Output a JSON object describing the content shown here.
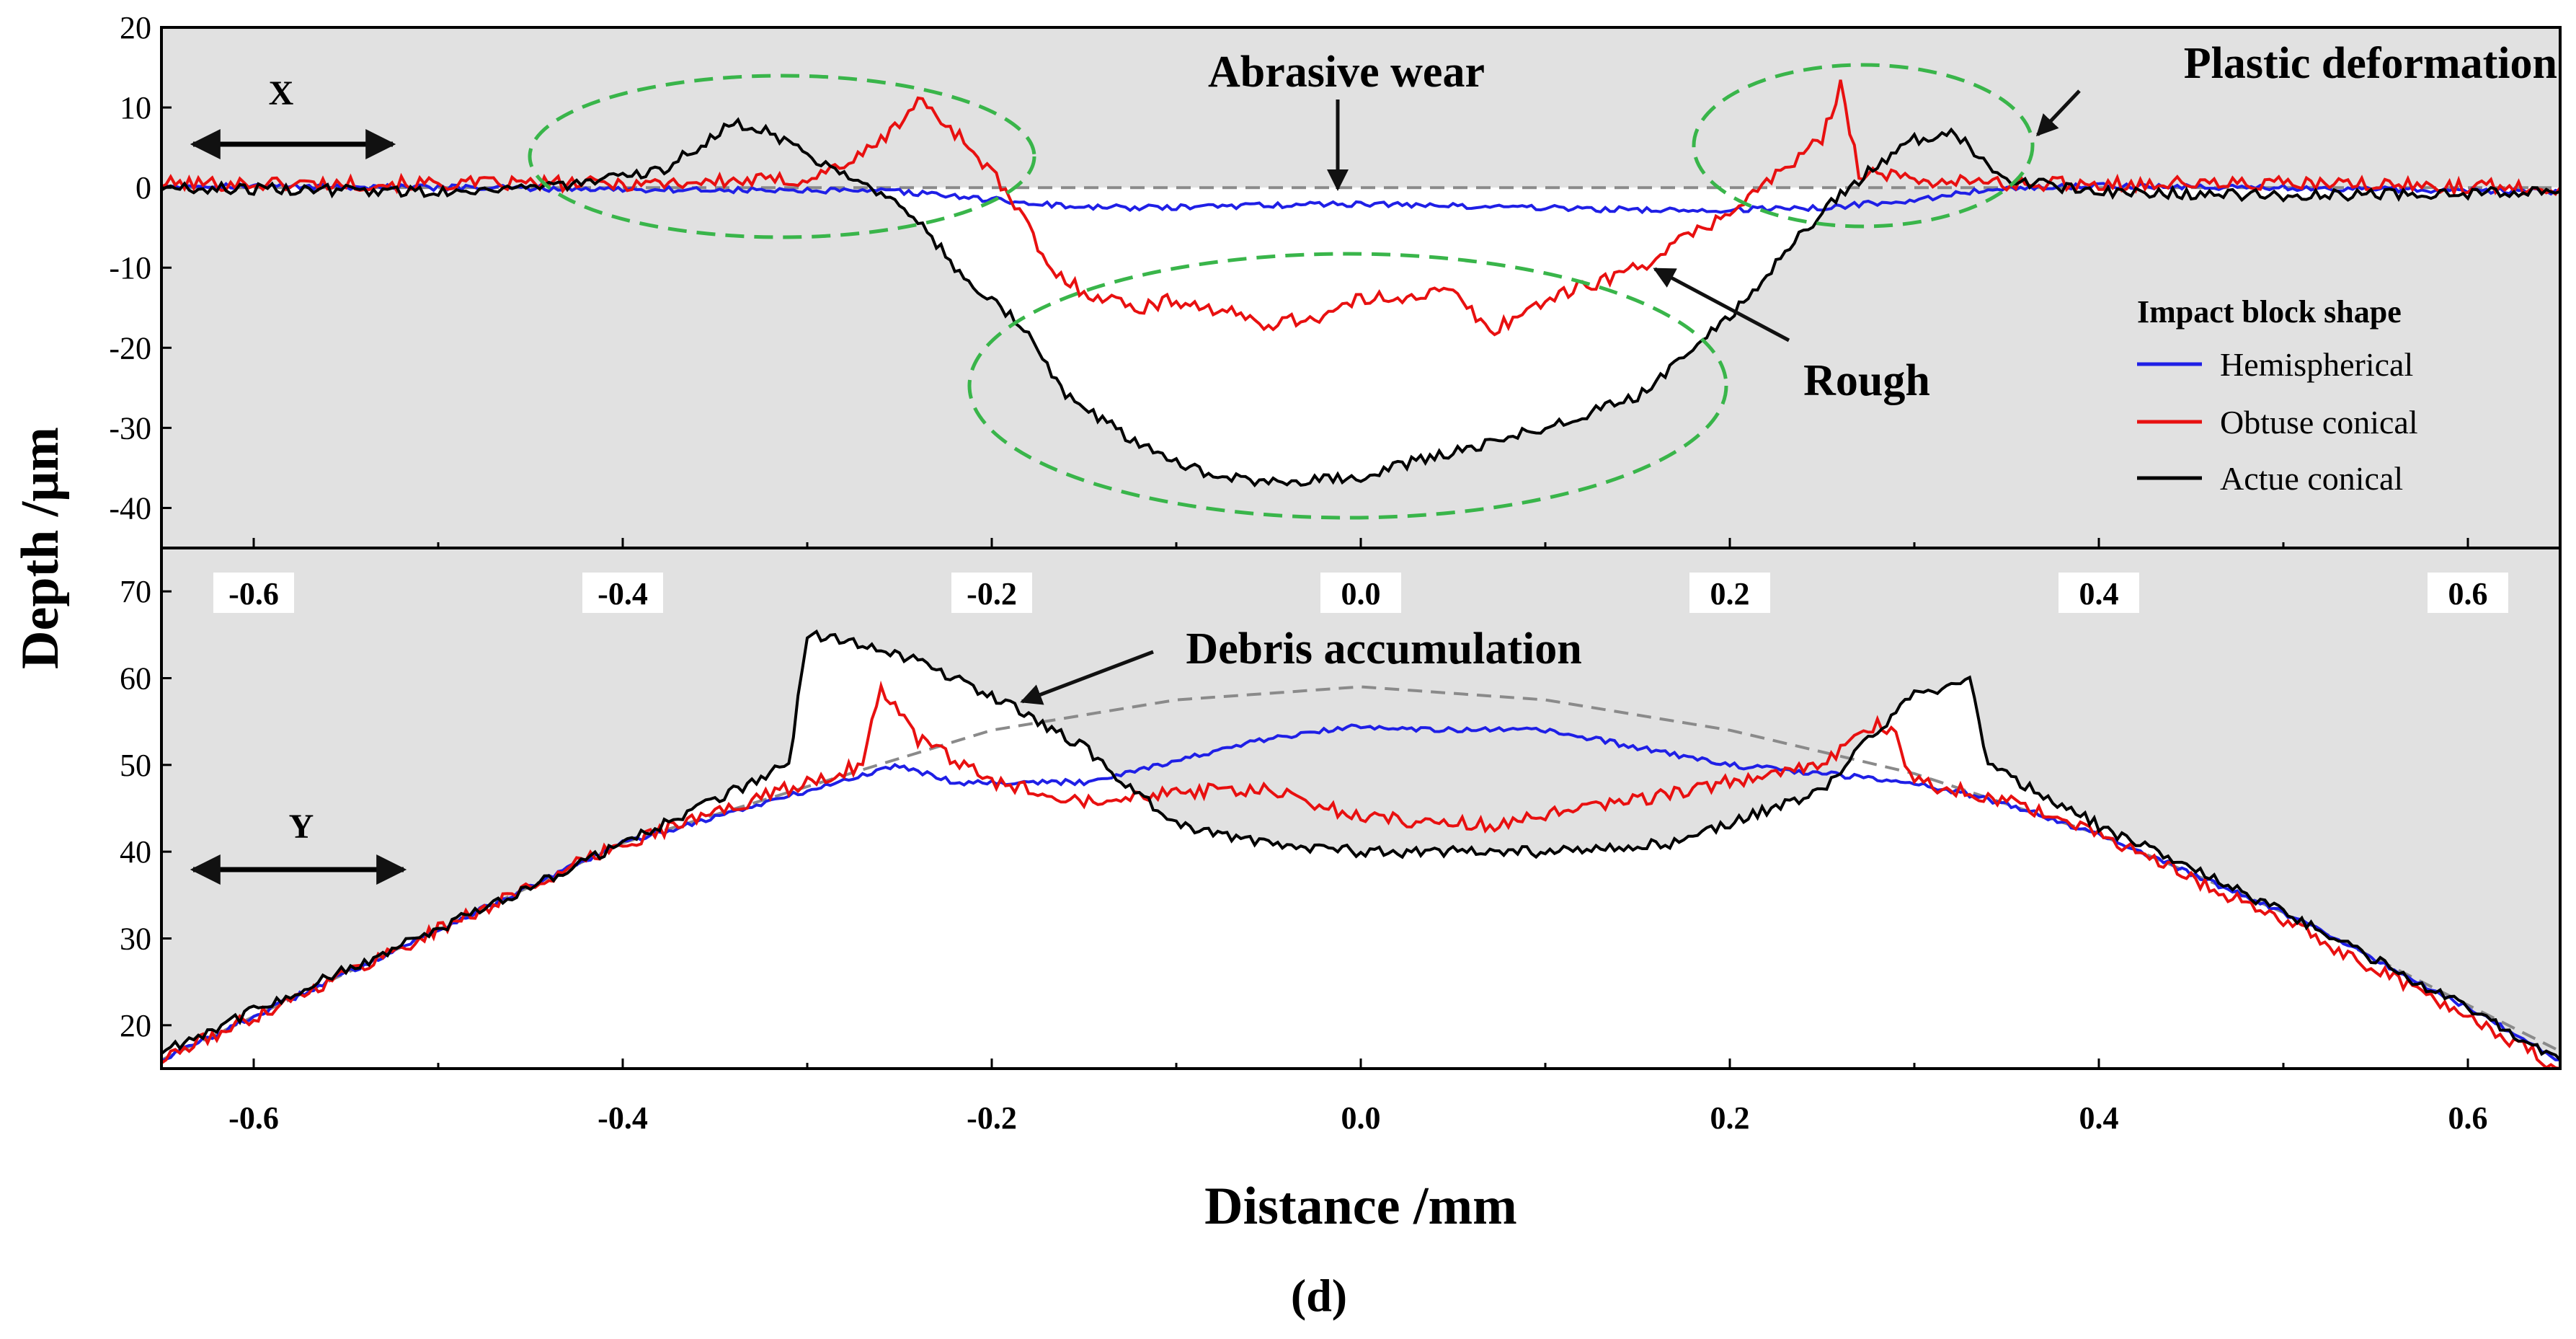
{
  "chart_data": [
    {
      "type": "line",
      "panel": "top",
      "direction_label": "X",
      "xlim": [
        -0.65,
        0.65
      ],
      "ylim": [
        -45,
        20
      ],
      "yticks": [
        20,
        10,
        0,
        -10,
        -20,
        -30,
        -40
      ],
      "xticks": [
        -0.6,
        -0.4,
        -0.2,
        0.0,
        0.2,
        0.4,
        0.6
      ],
      "xtick_labels": [
        "-0.6",
        "-0.4",
        "-0.2",
        "0.0",
        "0.2",
        "0.4",
        "0.6"
      ],
      "reference_line": {
        "x": [
          -0.65,
          0.65
        ],
        "y": [
          0,
          0
        ]
      },
      "series": [
        {
          "name": "Hemispherical",
          "color": "#1f1fe6",
          "x": [
            -0.65,
            -0.5,
            -0.35,
            -0.25,
            -0.2,
            -0.15,
            -0.1,
            -0.05,
            0.0,
            0.05,
            0.1,
            0.15,
            0.2,
            0.25,
            0.3,
            0.35,
            0.4,
            0.5,
            0.65
          ],
          "y": [
            0.3,
            0,
            -0.3,
            -0.5,
            -1.5,
            -2.5,
            -2.5,
            -2.2,
            -2,
            -2.3,
            -2.5,
            -2.8,
            -2.8,
            -2.5,
            -1.5,
            0,
            0.2,
            0,
            -0.5
          ]
        },
        {
          "name": "Obtuse conical",
          "color": "#e81010",
          "x": [
            -0.65,
            -0.5,
            -0.4,
            -0.3,
            -0.27,
            -0.25,
            -0.24,
            -0.22,
            -0.2,
            -0.18,
            -0.17,
            -0.15,
            -0.12,
            -0.1,
            -0.05,
            -0.02,
            0.0,
            0.05,
            0.07,
            0.1,
            0.15,
            0.2,
            0.25,
            0.26,
            0.27,
            0.3,
            0.35,
            0.5,
            0.65
          ],
          "y": [
            0.5,
            0.5,
            0.5,
            1,
            4,
            8,
            11,
            7,
            2,
            -5,
            -10,
            -13,
            -15,
            -14,
            -17,
            -16,
            -14,
            -13,
            -18,
            -14,
            -10,
            -3,
            6,
            13,
            2,
            1,
            0.5,
            0.5,
            0
          ]
        },
        {
          "name": "Actue conical",
          "color": "#000000",
          "x": [
            -0.65,
            -0.5,
            -0.42,
            -0.38,
            -0.34,
            -0.32,
            -0.3,
            -0.27,
            -0.24,
            -0.22,
            -0.2,
            -0.18,
            -0.16,
            -0.12,
            -0.08,
            -0.05,
            0.0,
            0.05,
            0.1,
            0.15,
            0.2,
            0.25,
            0.28,
            0.3,
            0.32,
            0.33,
            0.35,
            0.4,
            0.5,
            0.65
          ],
          "y": [
            0,
            -0.5,
            0.5,
            2,
            8,
            7,
            4,
            1,
            -4,
            -10,
            -14,
            -18,
            -26,
            -32,
            -36,
            -37,
            -36,
            -33,
            -30,
            -26,
            -16,
            -3,
            3,
            6,
            7,
            5,
            1,
            -0.5,
            -1,
            -0.5
          ]
        }
      ]
    },
    {
      "type": "line",
      "panel": "bottom",
      "direction_label": "Y",
      "xlabel": "Distance /mm",
      "xlim": [
        -0.65,
        0.65
      ],
      "ylim": [
        15,
        75
      ],
      "yticks": [
        70,
        60,
        50,
        40,
        30,
        20
      ],
      "xticks": [
        -0.6,
        -0.4,
        -0.2,
        0.0,
        0.2,
        0.4,
        0.6
      ],
      "xtick_labels": [
        "-0.6",
        "-0.4",
        "-0.2",
        "0.0",
        "0.2",
        "0.4",
        "0.6"
      ],
      "reference_curve": {
        "x": [
          -0.65,
          -0.5,
          -0.4,
          -0.3,
          -0.2,
          -0.1,
          0.0,
          0.1,
          0.2,
          0.3,
          0.4,
          0.5,
          0.65
        ],
        "y": [
          16,
          31,
          41,
          47.5,
          54,
          57.5,
          59,
          57.5,
          54,
          49,
          42,
          33,
          17
        ]
      },
      "series": [
        {
          "name": "Hemispherical",
          "color": "#1f1fe6",
          "x": [
            -0.65,
            -0.5,
            -0.4,
            -0.3,
            -0.25,
            -0.22,
            -0.15,
            -0.1,
            -0.05,
            0.0,
            0.05,
            0.1,
            0.15,
            0.2,
            0.25,
            0.3,
            0.35,
            0.4,
            0.5,
            0.6,
            0.65
          ],
          "y": [
            16,
            31,
            41,
            47,
            50,
            48,
            48,
            50.5,
            53,
            54.5,
            54,
            54,
            52,
            50,
            49,
            48,
            45.5,
            42,
            33,
            22,
            16
          ]
        },
        {
          "name": "Obtuse conical",
          "color": "#e81010",
          "x": [
            -0.65,
            -0.5,
            -0.4,
            -0.3,
            -0.27,
            -0.26,
            -0.24,
            -0.2,
            -0.15,
            -0.1,
            -0.05,
            0.0,
            0.07,
            0.15,
            0.25,
            0.28,
            0.29,
            0.3,
            0.35,
            0.4,
            0.5,
            0.6,
            0.65
          ],
          "y": [
            16,
            31,
            41,
            48,
            50,
            59,
            53,
            48,
            46,
            47,
            47,
            44,
            43,
            46,
            50,
            55,
            53,
            48,
            46,
            42,
            32,
            21,
            15
          ]
        },
        {
          "name": "Actue conical",
          "color": "#000000",
          "x": [
            -0.65,
            -0.5,
            -0.4,
            -0.31,
            -0.3,
            -0.27,
            -0.24,
            -0.2,
            -0.15,
            -0.1,
            -0.05,
            0.0,
            0.1,
            0.17,
            0.25,
            0.27,
            0.3,
            0.33,
            0.34,
            0.4,
            0.5,
            0.6,
            0.65
          ],
          "y": [
            17,
            31,
            41,
            50,
            65,
            64,
            62,
            58,
            52,
            43,
            41,
            40,
            40,
            41,
            47,
            52,
            58,
            60,
            50,
            43,
            33,
            22,
            16
          ]
        }
      ]
    }
  ],
  "axes": {
    "ylabel": "Depth /μm",
    "xlabel": "Distance /mm"
  },
  "annotations": {
    "abrasive_wear": "Abrasive wear",
    "plastic_deformation": "Plastic deformation",
    "rough": "Rough",
    "debris_accumulation": "Debris accumulation"
  },
  "legend": {
    "title": "Impact block shape",
    "entries": [
      "Hemispherical",
      "Obtuse conical",
      "Actue conical"
    ]
  },
  "caption": "(d)",
  "colors": {
    "panel_background": "#e1e1e1",
    "below_curve_fill": "#ffffff",
    "reference_dash": "#8a8a8a",
    "ellipse": "#39b54a"
  }
}
